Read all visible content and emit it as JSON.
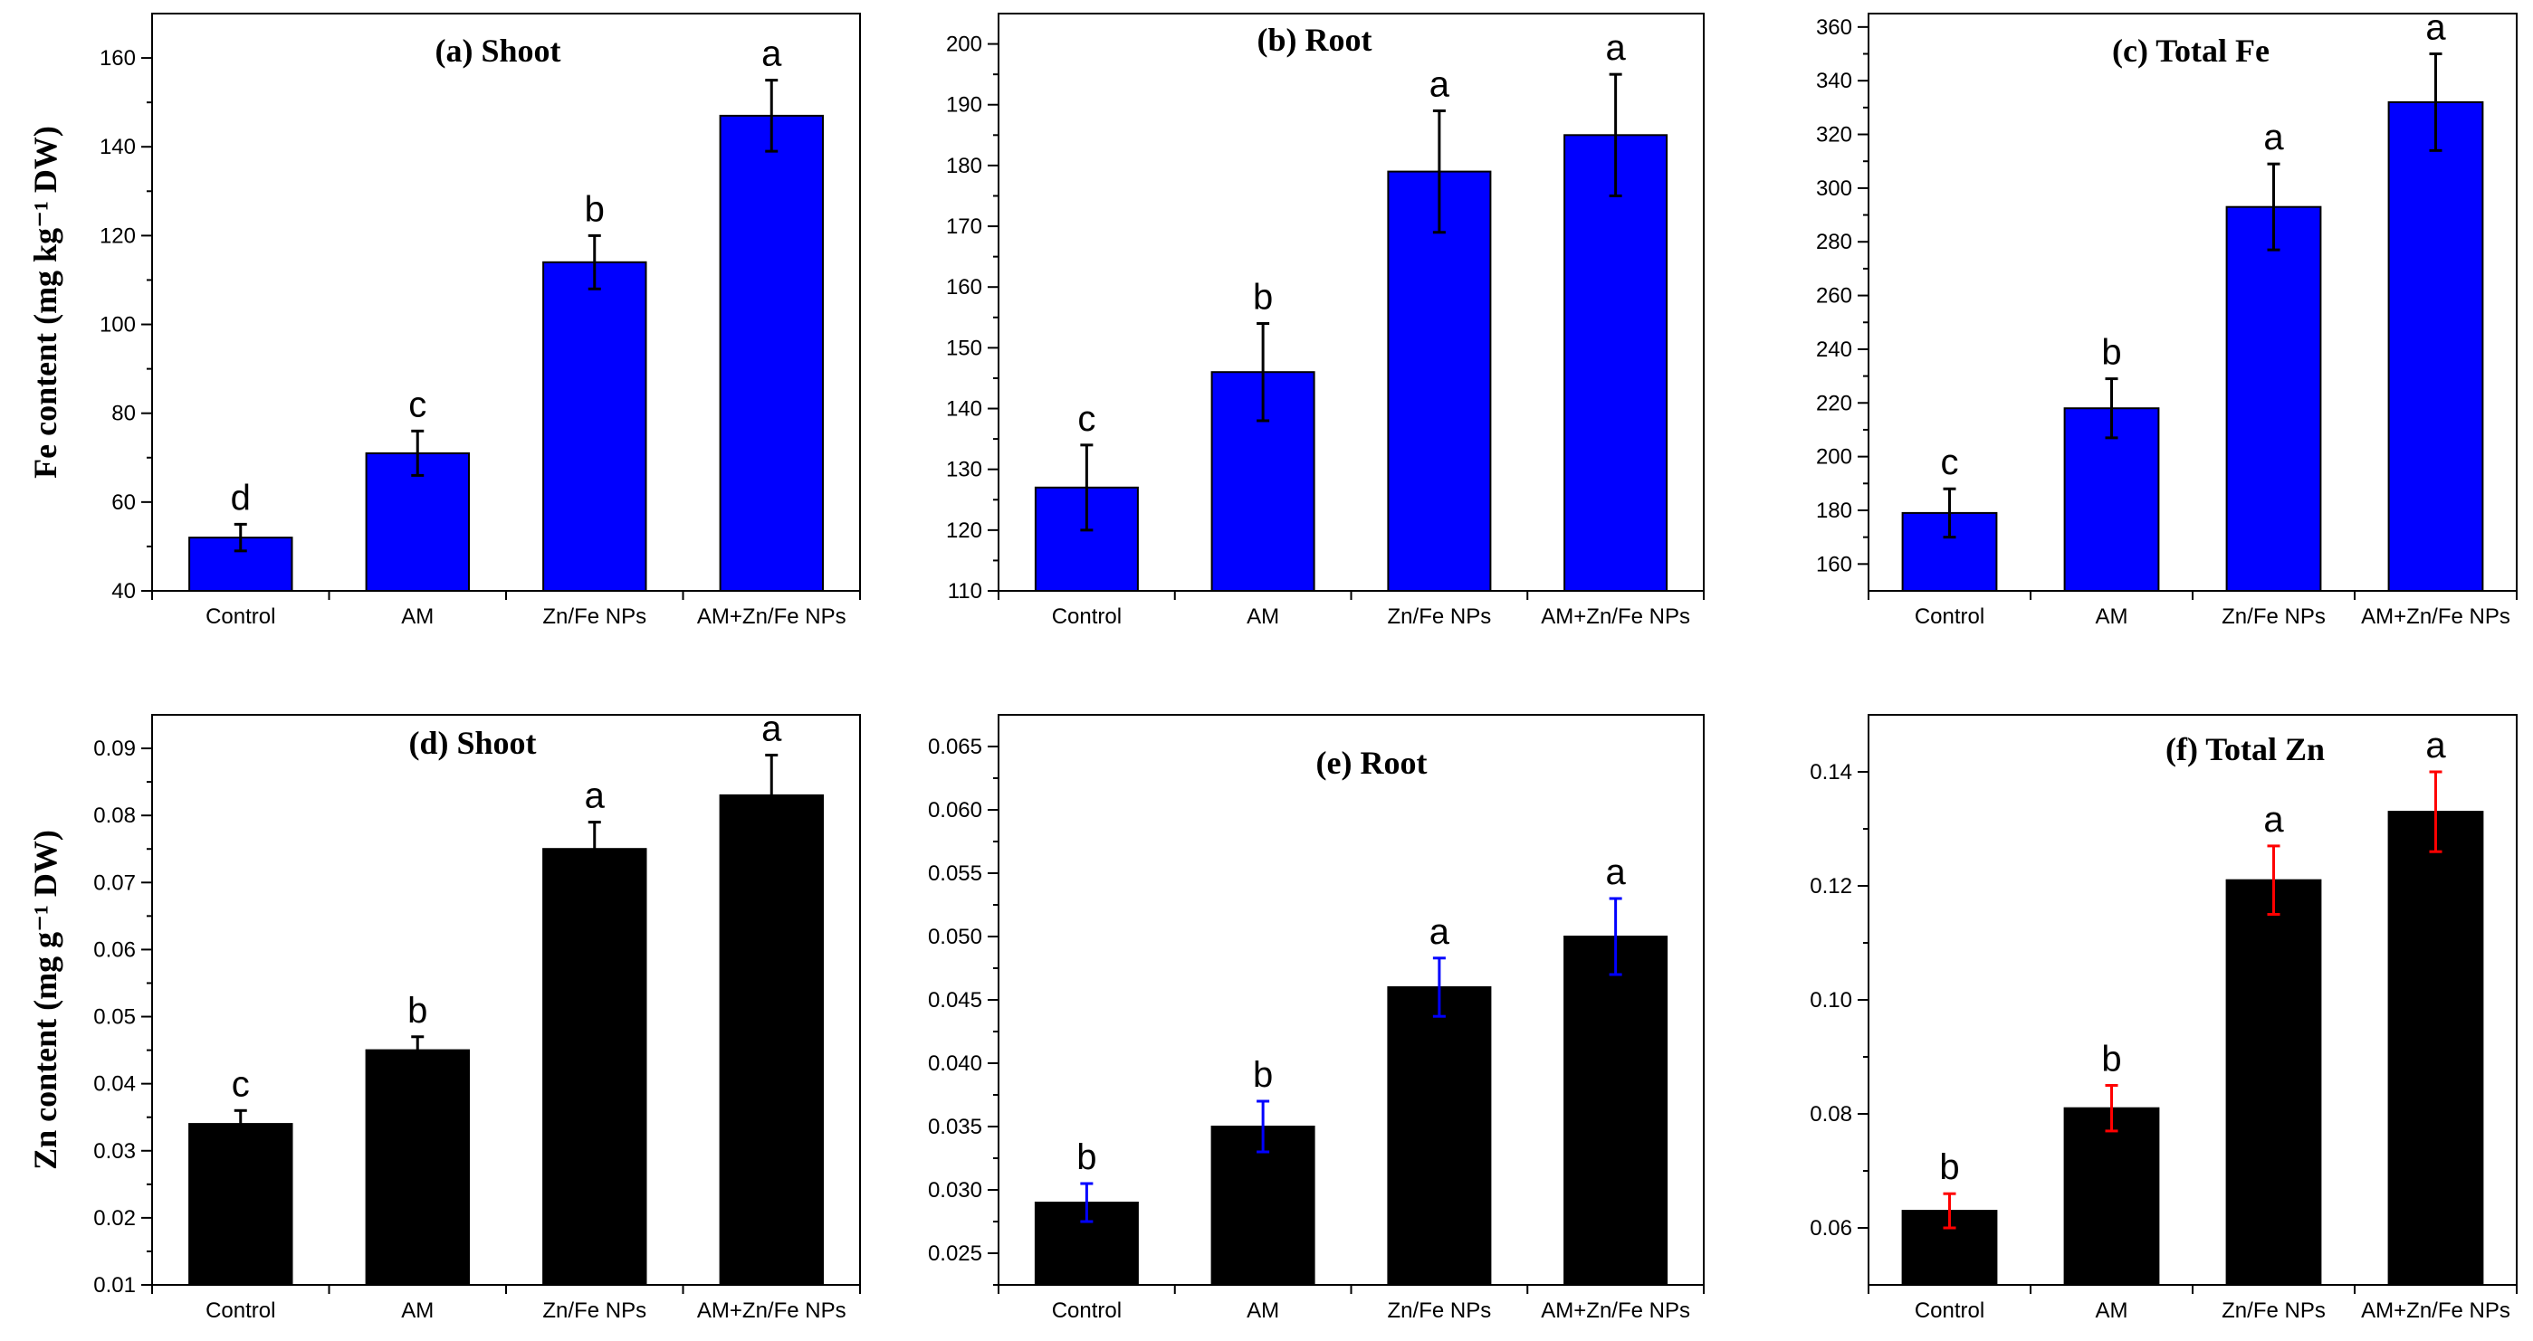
{
  "chart_data": [
    {
      "type": "bar",
      "title": "(a) Shoot",
      "ylabel": "Fe content (mg kg⁻¹ DW)",
      "categories": [
        "Control",
        "AM",
        "Zn/Fe NPs",
        "AM+Zn/Fe NPs"
      ],
      "values": [
        52,
        71,
        114,
        147
      ],
      "errors": [
        3,
        5,
        6,
        8
      ],
      "letters": [
        "d",
        "c",
        "b",
        "a"
      ],
      "ylim": [
        40,
        170
      ],
      "yticks": [
        40,
        60,
        80,
        100,
        120,
        140,
        160
      ],
      "tick_labels": [
        "40",
        "60",
        "80",
        "100",
        "120",
        "140",
        "160"
      ],
      "bar_color": "#0000ff",
      "error_color": "#000000"
    },
    {
      "type": "bar",
      "title": "(b) Root",
      "ylabel": "",
      "categories": [
        "Control",
        "AM",
        "Zn/Fe NPs",
        "AM+Zn/Fe NPs"
      ],
      "values": [
        127,
        146,
        179,
        185
      ],
      "errors": [
        7,
        8,
        10,
        10
      ],
      "letters": [
        "c",
        "b",
        "a",
        "a"
      ],
      "ylim": [
        110,
        205
      ],
      "yticks": [
        110,
        120,
        130,
        140,
        150,
        160,
        170,
        180,
        190,
        200
      ],
      "tick_labels": [
        "110",
        "120",
        "130",
        "140",
        "150",
        "160",
        "170",
        "180",
        "190",
        "200"
      ],
      "bar_color": "#0000ff",
      "error_color": "#000000"
    },
    {
      "type": "bar",
      "title": "(c) Total Fe",
      "ylabel": "",
      "categories": [
        "Control",
        "AM",
        "Zn/Fe NPs",
        "AM+Zn/Fe NPs"
      ],
      "values": [
        179,
        218,
        293,
        332
      ],
      "errors": [
        9,
        11,
        16,
        18
      ],
      "letters": [
        "c",
        "b",
        "a",
        "a"
      ],
      "ylim": [
        150,
        365
      ],
      "yticks": [
        160,
        180,
        200,
        220,
        240,
        260,
        280,
        300,
        320,
        340,
        360
      ],
      "tick_labels": [
        "160",
        "180",
        "200",
        "220",
        "240",
        "260",
        "280",
        "300",
        "320",
        "340",
        "360"
      ],
      "bar_color": "#0000ff",
      "error_color": "#000000"
    },
    {
      "type": "bar",
      "title": "(d) Shoot",
      "ylabel": "Zn content (mg g⁻¹ DW)",
      "categories": [
        "Control",
        "AM",
        "Zn/Fe NPs",
        "AM+Zn/Fe NPs"
      ],
      "values": [
        0.034,
        0.045,
        0.075,
        0.083
      ],
      "errors": [
        0.002,
        0.002,
        0.004,
        0.006
      ],
      "letters": [
        "c",
        "b",
        "a",
        "a"
      ],
      "ylim": [
        0.01,
        0.095
      ],
      "yticks": [
        0.01,
        0.02,
        0.03,
        0.04,
        0.05,
        0.06,
        0.07,
        0.08,
        0.09
      ],
      "tick_labels": [
        "0.01",
        "0.02",
        "0.03",
        "0.04",
        "0.05",
        "0.06",
        "0.07",
        "0.08",
        "0.09"
      ],
      "bar_color": "#000000",
      "error_color": "#000000"
    },
    {
      "type": "bar",
      "title": "(e) Root",
      "ylabel": "",
      "categories": [
        "Control",
        "AM",
        "Zn/Fe NPs",
        "AM+Zn/Fe NPs"
      ],
      "values": [
        0.029,
        0.035,
        0.046,
        0.05
      ],
      "errors": [
        0.0015,
        0.002,
        0.0023,
        0.003
      ],
      "letters": [
        "b",
        "b",
        "a",
        "a"
      ],
      "ylim": [
        0.0225,
        0.0675
      ],
      "yticks": [
        0.025,
        0.03,
        0.035,
        0.04,
        0.045,
        0.05,
        0.055,
        0.06,
        0.065
      ],
      "tick_labels": [
        "0.025",
        "0.030",
        "0.035",
        "0.040",
        "0.045",
        "0.050",
        "0.055",
        "0.060",
        "0.065"
      ],
      "bar_color": "#000000",
      "error_color": "#0000ff"
    },
    {
      "type": "bar",
      "title": "(f) Total Zn",
      "ylabel": "",
      "categories": [
        "Control",
        "AM",
        "Zn/Fe NPs",
        "AM+Zn/Fe NPs"
      ],
      "values": [
        0.063,
        0.081,
        0.121,
        0.133
      ],
      "errors": [
        0.003,
        0.004,
        0.006,
        0.007
      ],
      "letters": [
        "b",
        "b",
        "a",
        "a"
      ],
      "ylim": [
        0.05,
        0.15
      ],
      "yticks": [
        0.06,
        0.08,
        0.1,
        0.12,
        0.14
      ],
      "tick_labels": [
        "0.06",
        "0.08",
        "0.10",
        "0.12",
        "0.14"
      ],
      "bar_color": "#000000",
      "error_color": "#ff0000"
    }
  ]
}
